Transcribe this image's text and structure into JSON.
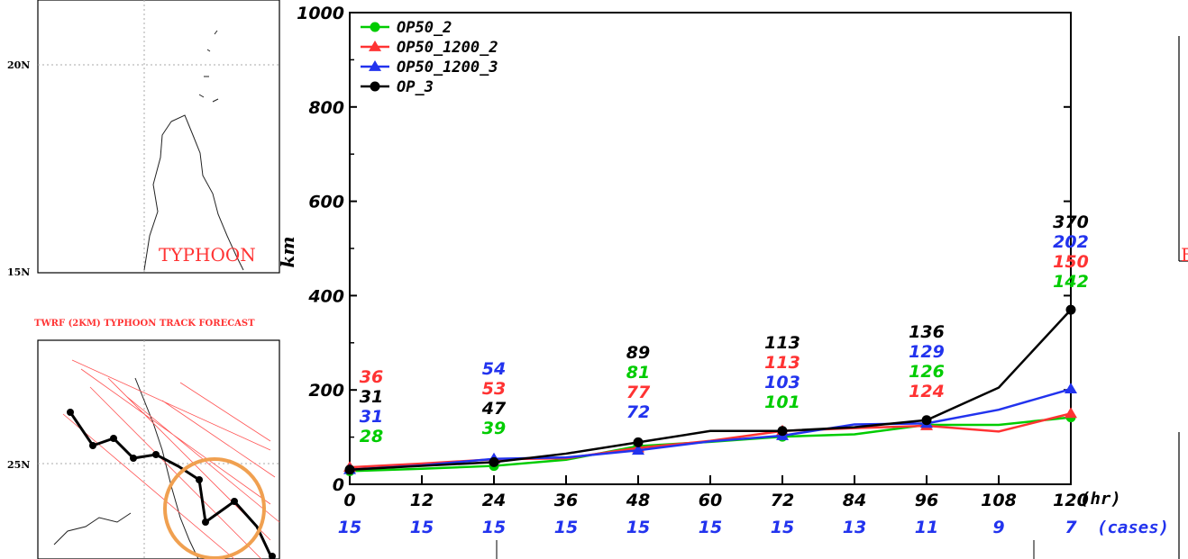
{
  "map_fragments": {
    "left_lat_labels": [
      "20N",
      "15N",
      "25N"
    ],
    "left_top_panel_label": "TYPHOON",
    "left_bottom_panel_title": "TWRF (2KM) TYPHOON TRACK FORECAST",
    "right_panel_fragment": "E"
  },
  "chart_data": {
    "type": "line",
    "title": "",
    "xlabel": "(hr)",
    "ylabel": "km",
    "cases_label": "(cases)",
    "x": [
      0,
      12,
      24,
      36,
      48,
      60,
      72,
      84,
      96,
      108,
      120
    ],
    "xticks": [
      "0",
      "12",
      "24",
      "36",
      "48",
      "60",
      "72",
      "84",
      "96",
      "108",
      "120"
    ],
    "yticks": [
      "0",
      "200",
      "400",
      "600",
      "800",
      "1000"
    ],
    "ylim": [
      0,
      1000
    ],
    "xlim": [
      0,
      120
    ],
    "cases": [
      "15",
      "15",
      "15",
      "15",
      "15",
      "15",
      "15",
      "13",
      "11",
      "9",
      "7"
    ],
    "legend_position": "top-left",
    "series": [
      {
        "name": "OP50_2",
        "color": "#00cc00",
        "marker": "circle",
        "values": [
          28,
          33,
          39,
          52,
          81,
          90,
          101,
          106,
          126,
          126,
          142
        ]
      },
      {
        "name": "OP50_1200_2",
        "color": "#ff3333",
        "marker": "triangle",
        "values": [
          36,
          44,
          53,
          55,
          77,
          92,
          113,
          119,
          124,
          112,
          150
        ]
      },
      {
        "name": "OP50_1200_3",
        "color": "#2233ee",
        "marker": "triangle",
        "values": [
          31,
          40,
          54,
          57,
          72,
          91,
          103,
          127,
          129,
          158,
          202
        ]
      },
      {
        "name": "OP_3",
        "color": "#000000",
        "marker": "circle",
        "values": [
          31,
          39,
          47,
          65,
          89,
          113,
          113,
          121,
          136,
          205,
          370
        ]
      }
    ],
    "annotations": [
      {
        "x": 0,
        "labels": [
          {
            "text": "36",
            "color": "#ff3333"
          },
          {
            "text": "31",
            "color": "#000000"
          },
          {
            "text": "31",
            "color": "#2233ee"
          },
          {
            "text": "28",
            "color": "#00cc00"
          }
        ]
      },
      {
        "x": 24,
        "labels": [
          {
            "text": "54",
            "color": "#2233ee"
          },
          {
            "text": "53",
            "color": "#ff3333"
          },
          {
            "text": "47",
            "color": "#000000"
          },
          {
            "text": "39",
            "color": "#00cc00"
          }
        ]
      },
      {
        "x": 48,
        "labels": [
          {
            "text": "89",
            "color": "#000000"
          },
          {
            "text": "81",
            "color": "#00cc00"
          },
          {
            "text": "77",
            "color": "#ff3333"
          },
          {
            "text": "72",
            "color": "#2233ee"
          }
        ]
      },
      {
        "x": 72,
        "labels": [
          {
            "text": "113",
            "color": "#000000"
          },
          {
            "text": "113",
            "color": "#ff3333"
          },
          {
            "text": "103",
            "color": "#2233ee"
          },
          {
            "text": "101",
            "color": "#00cc00"
          }
        ]
      },
      {
        "x": 96,
        "labels": [
          {
            "text": "136",
            "color": "#000000"
          },
          {
            "text": "129",
            "color": "#2233ee"
          },
          {
            "text": "126",
            "color": "#00cc00"
          },
          {
            "text": "124",
            "color": "#ff3333"
          }
        ]
      },
      {
        "x": 120,
        "labels": [
          {
            "text": "370",
            "color": "#000000"
          },
          {
            "text": "202",
            "color": "#2233ee"
          },
          {
            "text": "150",
            "color": "#ff3333"
          },
          {
            "text": "142",
            "color": "#00cc00"
          }
        ]
      }
    ]
  }
}
